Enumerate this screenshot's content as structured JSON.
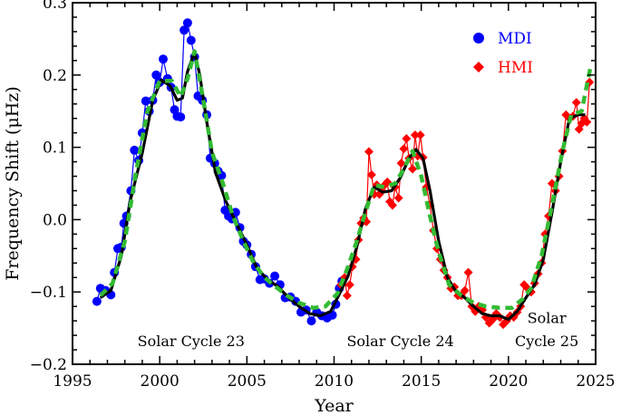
{
  "chart_data": {
    "type": "line",
    "title": "",
    "xlabel": "Year",
    "ylabel": "Frequency Shift (μHz)",
    "xlim": [
      1995,
      2025
    ],
    "ylim": [
      -0.2,
      0.3
    ],
    "xticks": [
      1995,
      2000,
      2005,
      2010,
      2015,
      2020,
      2025
    ],
    "yticks": [
      -0.2,
      -0.1,
      0.0,
      0.1,
      0.2,
      0.3
    ],
    "ytick_labels": [
      "−0.2",
      "−0.1",
      "0.0",
      "0.1",
      "0.2",
      "0.3"
    ],
    "grid": false,
    "legend_position": "top-right",
    "series": [
      {
        "name": "MDI",
        "color": "#0000ff",
        "marker": "circle",
        "points": [
          [
            1996.4,
            -0.113
          ],
          [
            1996.6,
            -0.095
          ],
          [
            1996.9,
            -0.098
          ],
          [
            1997.2,
            -0.104
          ],
          [
            1997.4,
            -0.073
          ],
          [
            1997.6,
            -0.04
          ],
          [
            1997.8,
            -0.038
          ],
          [
            1997.95,
            -0.005
          ],
          [
            1998.1,
            0.005
          ],
          [
            1998.35,
            0.04
          ],
          [
            1998.55,
            0.096
          ],
          [
            1998.8,
            0.082
          ],
          [
            1999.0,
            0.12
          ],
          [
            1999.2,
            0.164
          ],
          [
            1999.4,
            0.15
          ],
          [
            1999.6,
            0.165
          ],
          [
            1999.8,
            0.2
          ],
          [
            2000.0,
            0.19
          ],
          [
            2000.2,
            0.222
          ],
          [
            2000.45,
            0.195
          ],
          [
            2000.65,
            0.183
          ],
          [
            2000.85,
            0.152
          ],
          [
            2001.0,
            0.143
          ],
          [
            2001.2,
            0.142
          ],
          [
            2001.4,
            0.262
          ],
          [
            2001.6,
            0.272
          ],
          [
            2001.8,
            0.248
          ],
          [
            2002.0,
            0.225
          ],
          [
            2002.2,
            0.171
          ],
          [
            2002.45,
            0.165
          ],
          [
            2002.7,
            0.145
          ],
          [
            2002.9,
            0.085
          ],
          [
            2003.15,
            0.078
          ],
          [
            2003.35,
            0.067
          ],
          [
            2003.55,
            0.061
          ],
          [
            2003.75,
            0.013
          ],
          [
            2003.95,
            0.005
          ],
          [
            2004.15,
            0.001
          ],
          [
            2004.35,
            0.01
          ],
          [
            2004.6,
            -0.011
          ],
          [
            2004.8,
            -0.03
          ],
          [
            2005.0,
            -0.035
          ],
          [
            2005.25,
            -0.048
          ],
          [
            2005.5,
            -0.065
          ],
          [
            2005.75,
            -0.083
          ],
          [
            2006.0,
            -0.082
          ],
          [
            2006.3,
            -0.088
          ],
          [
            2006.6,
            -0.078
          ],
          [
            2006.9,
            -0.09
          ],
          [
            2007.2,
            -0.108
          ],
          [
            2007.5,
            -0.107
          ],
          [
            2007.8,
            -0.113
          ],
          [
            2008.1,
            -0.128
          ],
          [
            2008.4,
            -0.125
          ],
          [
            2008.7,
            -0.14
          ],
          [
            2009.0,
            -0.128
          ],
          [
            2009.3,
            -0.133
          ],
          [
            2009.6,
            -0.136
          ],
          [
            2009.9,
            -0.132
          ],
          [
            2010.1,
            -0.117
          ],
          [
            2010.3,
            -0.095
          ],
          [
            2010.45,
            -0.085
          ]
        ]
      },
      {
        "name": "HMI",
        "color": "#ff0000",
        "marker": "diamond",
        "points": [
          [
            2010.4,
            -0.09
          ],
          [
            2010.6,
            -0.08
          ],
          [
            2010.75,
            -0.105
          ],
          [
            2010.9,
            -0.09
          ],
          [
            2011.05,
            -0.065
          ],
          [
            2011.25,
            -0.055
          ],
          [
            2011.4,
            -0.028
          ],
          [
            2011.55,
            -0.005
          ],
          [
            2011.7,
            0.002
          ],
          [
            2011.85,
            -0.003
          ],
          [
            2012.0,
            0.094
          ],
          [
            2012.15,
            0.062
          ],
          [
            2012.3,
            0.035
          ],
          [
            2012.45,
            0.048
          ],
          [
            2012.6,
            0.035
          ],
          [
            2012.75,
            0.04
          ],
          [
            2012.9,
            0.048
          ],
          [
            2013.05,
            0.052
          ],
          [
            2013.2,
            0.025
          ],
          [
            2013.35,
            0.02
          ],
          [
            2013.5,
            0.045
          ],
          [
            2013.7,
            0.03
          ],
          [
            2013.85,
            0.078
          ],
          [
            2014.0,
            0.098
          ],
          [
            2014.15,
            0.112
          ],
          [
            2014.3,
            0.085
          ],
          [
            2014.5,
            0.07
          ],
          [
            2014.65,
            0.117
          ],
          [
            2014.8,
            0.088
          ],
          [
            2014.95,
            0.117
          ],
          [
            2015.1,
            0.086
          ],
          [
            2015.3,
            0.045
          ],
          [
            2015.5,
            0.02
          ],
          [
            2015.7,
            -0.015
          ],
          [
            2015.9,
            -0.04
          ],
          [
            2016.1,
            -0.055
          ],
          [
            2016.3,
            -0.07
          ],
          [
            2016.5,
            -0.08
          ],
          [
            2016.7,
            -0.095
          ],
          [
            2016.9,
            -0.093
          ],
          [
            2017.1,
            -0.105
          ],
          [
            2017.3,
            -0.105
          ],
          [
            2017.5,
            -0.098
          ],
          [
            2017.7,
            -0.073
          ],
          [
            2017.9,
            -0.12
          ],
          [
            2018.1,
            -0.127
          ],
          [
            2018.3,
            -0.12
          ],
          [
            2018.5,
            -0.125
          ],
          [
            2018.7,
            -0.135
          ],
          [
            2018.9,
            -0.143
          ],
          [
            2019.1,
            -0.138
          ],
          [
            2019.3,
            -0.13
          ],
          [
            2019.5,
            -0.135
          ],
          [
            2019.7,
            -0.145
          ],
          [
            2019.9,
            -0.14
          ],
          [
            2020.1,
            -0.133
          ],
          [
            2020.3,
            -0.135
          ],
          [
            2020.5,
            -0.128
          ],
          [
            2020.7,
            -0.12
          ],
          [
            2020.9,
            -0.09
          ],
          [
            2021.1,
            -0.095
          ],
          [
            2021.3,
            -0.1
          ],
          [
            2021.5,
            -0.088
          ],
          [
            2021.7,
            -0.075
          ],
          [
            2021.9,
            -0.06
          ],
          [
            2022.1,
            -0.02
          ],
          [
            2022.3,
            0.005
          ],
          [
            2022.5,
            0.05
          ],
          [
            2022.7,
            0.04
          ],
          [
            2022.9,
            0.06
          ],
          [
            2023.1,
            0.095
          ],
          [
            2023.3,
            0.145
          ],
          [
            2023.5,
            0.14
          ],
          [
            2023.7,
            0.143
          ],
          [
            2023.9,
            0.162
          ],
          [
            2024.05,
            0.125
          ],
          [
            2024.2,
            0.133
          ],
          [
            2024.35,
            0.14
          ],
          [
            2024.5,
            0.135
          ],
          [
            2024.65,
            0.19
          ]
        ]
      },
      {
        "color": "#000000",
        "style": "solid",
        "points": [
          [
            1996.6,
            -0.108
          ],
          [
            1997.2,
            -0.098
          ],
          [
            1997.8,
            -0.05
          ],
          [
            1998.3,
            0.025
          ],
          [
            1999.0,
            0.092
          ],
          [
            1999.6,
            0.165
          ],
          [
            2000.1,
            0.193
          ],
          [
            2000.6,
            0.185
          ],
          [
            2001.0,
            0.165
          ],
          [
            2001.3,
            0.168
          ],
          [
            2001.6,
            0.205
          ],
          [
            2002.0,
            0.232
          ],
          [
            2002.3,
            0.2
          ],
          [
            2002.7,
            0.135
          ],
          [
            2003.2,
            0.065
          ],
          [
            2003.8,
            0.025
          ],
          [
            2004.4,
            -0.005
          ],
          [
            2005.0,
            -0.035
          ],
          [
            2005.6,
            -0.068
          ],
          [
            2006.2,
            -0.083
          ],
          [
            2006.8,
            -0.093
          ],
          [
            2007.4,
            -0.108
          ],
          [
            2008.0,
            -0.12
          ],
          [
            2008.6,
            -0.13
          ],
          [
            2009.2,
            -0.133
          ],
          [
            2009.8,
            -0.127
          ],
          [
            2010.3,
            -0.103
          ],
          [
            2010.8,
            -0.078
          ],
          [
            2011.3,
            -0.038
          ],
          [
            2011.8,
            0.015
          ],
          [
            2012.3,
            0.045
          ],
          [
            2012.8,
            0.038
          ],
          [
            2013.3,
            0.04
          ],
          [
            2013.8,
            0.058
          ],
          [
            2014.3,
            0.085
          ],
          [
            2014.7,
            0.097
          ],
          [
            2015.1,
            0.085
          ],
          [
            2015.5,
            0.04
          ],
          [
            2016.0,
            -0.03
          ],
          [
            2016.5,
            -0.08
          ],
          [
            2017.0,
            -0.1
          ],
          [
            2017.5,
            -0.108
          ],
          [
            2018.0,
            -0.12
          ],
          [
            2018.5,
            -0.13
          ],
          [
            2019.0,
            -0.133
          ],
          [
            2019.5,
            -0.133
          ],
          [
            2020.0,
            -0.138
          ],
          [
            2020.5,
            -0.127
          ],
          [
            2021.0,
            -0.108
          ],
          [
            2021.5,
            -0.09
          ],
          [
            2022.0,
            -0.055
          ],
          [
            2022.5,
            0.01
          ],
          [
            2023.0,
            0.08
          ],
          [
            2023.5,
            0.14
          ],
          [
            2024.0,
            0.145
          ],
          [
            2024.4,
            0.145
          ]
        ]
      },
      {
        "color": "#33bb33",
        "style": "dashed",
        "points": [
          [
            1996.6,
            -0.105
          ],
          [
            1997.3,
            -0.088
          ],
          [
            1998.0,
            -0.03
          ],
          [
            1998.6,
            0.06
          ],
          [
            1999.3,
            0.15
          ],
          [
            2000.0,
            0.192
          ],
          [
            2000.7,
            0.192
          ],
          [
            2001.2,
            0.17
          ],
          [
            2001.6,
            0.195
          ],
          [
            2002.0,
            0.233
          ],
          [
            2002.5,
            0.165
          ],
          [
            2003.0,
            0.093
          ],
          [
            2003.6,
            0.052
          ],
          [
            2004.2,
            0.005
          ],
          [
            2004.8,
            -0.03
          ],
          [
            2005.4,
            -0.06
          ],
          [
            2006.0,
            -0.08
          ],
          [
            2006.6,
            -0.092
          ],
          [
            2007.3,
            -0.105
          ],
          [
            2008.0,
            -0.115
          ],
          [
            2008.8,
            -0.122
          ],
          [
            2009.5,
            -0.12
          ],
          [
            2010.2,
            -0.102
          ],
          [
            2010.8,
            -0.065
          ],
          [
            2011.3,
            -0.03
          ],
          [
            2011.8,
            0.01
          ],
          [
            2012.3,
            0.048
          ],
          [
            2012.9,
            0.045
          ],
          [
            2013.5,
            0.05
          ],
          [
            2014.0,
            0.07
          ],
          [
            2014.5,
            0.095
          ],
          [
            2015.0,
            0.06
          ],
          [
            2015.5,
            0.005
          ],
          [
            2016.0,
            -0.045
          ],
          [
            2016.6,
            -0.09
          ],
          [
            2017.3,
            -0.105
          ],
          [
            2018.0,
            -0.115
          ],
          [
            2018.7,
            -0.12
          ],
          [
            2019.5,
            -0.122
          ],
          [
            2020.2,
            -0.122
          ],
          [
            2020.8,
            -0.11
          ],
          [
            2021.3,
            -0.095
          ],
          [
            2021.9,
            -0.05
          ],
          [
            2022.5,
            0.02
          ],
          [
            2023.1,
            0.095
          ],
          [
            2023.6,
            0.145
          ],
          [
            2024.2,
            0.15
          ],
          [
            2024.7,
            0.21
          ]
        ]
      }
    ],
    "annotations": [
      {
        "text": "Solar Cycle 23",
        "x": 2001.8,
        "y": -0.175
      },
      {
        "text": "Solar Cycle 24",
        "x": 2013.8,
        "y": -0.175
      },
      {
        "text": "Solar",
        "x": 2022.2,
        "y": -0.143
      },
      {
        "text": "Cycle 25",
        "x": 2022.2,
        "y": -0.175
      }
    ]
  }
}
